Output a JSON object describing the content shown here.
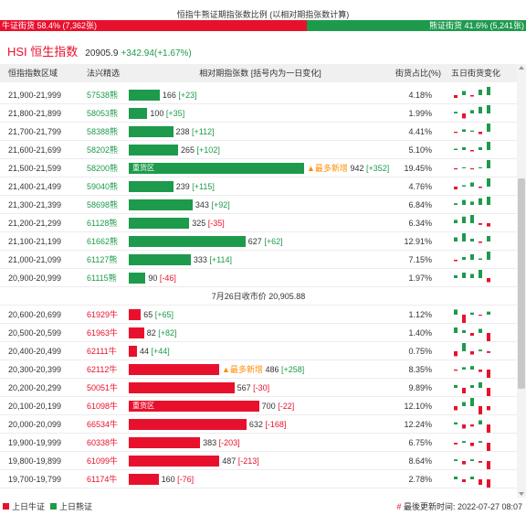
{
  "header": {
    "title": "恒指牛熊证期指张数比例 (以相对期指张数计算)",
    "bull_label": "牛证街货 58.4% (7,362张)",
    "bear_label": "熊证街货 41.6% (5,241张)",
    "bull_ratio": 0.584
  },
  "index": {
    "title": "HSI 恒生指数",
    "price": "20905.9",
    "change": "+342.94(+1.67%)"
  },
  "columns": {
    "range": "恒指指数区域",
    "code": "法兴精选",
    "bar": "相对期指张数 [括号内为一日变化]",
    "share": "街货占比(%)",
    "trend": "五日街货变化"
  },
  "bar_max": 942,
  "bear_rows": [
    {
      "range": "21,900-21,999",
      "code": "57538熊",
      "value": 166,
      "value_text": "166",
      "change": "[+23]",
      "dir": "up",
      "share": "4.18%",
      "trend": [
        -2,
        3,
        -1,
        4,
        6
      ]
    },
    {
      "range": "21,800-21,899",
      "code": "58053熊",
      "value": 100,
      "value_text": "100",
      "change": "[+35]",
      "dir": "up",
      "share": "1.99%",
      "trend": [
        1,
        -3,
        2,
        4,
        5
      ]
    },
    {
      "range": "21,700-21,799",
      "code": "58388熊",
      "value": 238,
      "value_text": "238",
      "change": "[+112]",
      "dir": "up",
      "share": "4.41%",
      "trend": [
        -1,
        2,
        1,
        -2,
        7
      ]
    },
    {
      "range": "21,600-21,699",
      "code": "58202熊",
      "value": 265,
      "value_text": "265",
      "change": "[+102]",
      "dir": "up",
      "share": "5.10%",
      "trend": [
        1,
        2,
        -1,
        2,
        6
      ]
    },
    {
      "range": "21,500-21,599",
      "code": "58200熊",
      "value": 942,
      "value_text": "942",
      "change": "[+352]",
      "dir": "up",
      "share": "19.45%",
      "label": "重货区",
      "newest": "▲最多新增",
      "trend": [
        -1,
        1,
        -1,
        1,
        8
      ]
    },
    {
      "range": "21,400-21,499",
      "code": "59040熊",
      "value": 239,
      "value_text": "239",
      "change": "[+115]",
      "dir": "up",
      "share": "4.76%",
      "trend": [
        -2,
        1,
        3,
        -1,
        6
      ]
    },
    {
      "range": "21,300-21,399",
      "code": "58698熊",
      "value": 343,
      "value_text": "343",
      "change": "[+92]",
      "dir": "up",
      "share": "6.84%",
      "trend": [
        1,
        3,
        2,
        4,
        5
      ]
    },
    {
      "range": "21,200-21,299",
      "code": "61128熊",
      "value": 325,
      "value_text": "325",
      "change": "[-35]",
      "dir": "down",
      "share": "6.34%",
      "trend": [
        2,
        4,
        5,
        -1,
        -2
      ]
    },
    {
      "range": "21,100-21,199",
      "code": "61662熊",
      "value": 627,
      "value_text": "627",
      "change": "[+62]",
      "dir": "up",
      "share": "12.91%",
      "trend": [
        3,
        6,
        2,
        -1,
        4
      ]
    },
    {
      "range": "21,000-21,099",
      "code": "61127熊",
      "value": 333,
      "value_text": "333",
      "change": "[+114]",
      "dir": "up",
      "share": "7.15%",
      "trend": [
        -1,
        2,
        4,
        1,
        6
      ]
    },
    {
      "range": "20,900-20,999",
      "code": "61115熊",
      "value": 90,
      "value_text": "90",
      "change": "[-46]",
      "dir": "down",
      "share": "1.97%",
      "trend": [
        2,
        4,
        3,
        6,
        -3
      ]
    }
  ],
  "close_note": "7月26日收市价 20,905.88",
  "bull_rows": [
    {
      "range": "20,600-20,699",
      "code": "61929牛",
      "value": 65,
      "value_text": "65",
      "change": "[+65]",
      "dir": "up",
      "share": "1.12%",
      "trend": [
        5,
        -8,
        2,
        -1,
        3
      ]
    },
    {
      "range": "20,500-20,599",
      "code": "61963牛",
      "value": 82,
      "value_text": "82",
      "change": "[+82]",
      "dir": "up",
      "share": "1.40%",
      "trend": [
        4,
        2,
        -2,
        3,
        -6
      ]
    },
    {
      "range": "20,400-20,499",
      "code": "62111牛",
      "value": 44,
      "value_text": "44",
      "change": "[+44]",
      "dir": "up",
      "share": "0.75%",
      "trend": [
        -3,
        5,
        -2,
        1,
        -1
      ]
    },
    {
      "range": "20,300-20,399",
      "code": "62112牛",
      "value": 486,
      "value_text": "486",
      "change": "[+258]",
      "dir": "up",
      "share": "8.35%",
      "newest": "▲最多新增",
      "trend": [
        -1,
        2,
        3,
        -2,
        -7
      ]
    },
    {
      "range": "20,200-20,299",
      "code": "50051牛",
      "value": 567,
      "value_text": "567",
      "change": "[-30]",
      "dir": "down",
      "share": "9.89%",
      "trend": [
        1,
        -2,
        1,
        2,
        -3
      ]
    },
    {
      "range": "20,100-20,199",
      "code": "61098牛",
      "value": 700,
      "value_text": "700",
      "change": "[-22]",
      "dir": "down",
      "share": "12.10%",
      "label": "重货区",
      "trend": [
        -1,
        1,
        2,
        -2,
        -1
      ]
    },
    {
      "range": "20,000-20,099",
      "code": "66534牛",
      "value": 632,
      "value_text": "632",
      "change": "[-168]",
      "dir": "down",
      "share": "12.24%",
      "trend": [
        1,
        -2,
        -1,
        2,
        -4
      ]
    },
    {
      "range": "19,900-19,999",
      "code": "60338牛",
      "value": 383,
      "value_text": "383",
      "change": "[-203]",
      "dir": "down",
      "share": "6.75%",
      "trend": [
        -1,
        1,
        -2,
        1,
        -5
      ]
    },
    {
      "range": "19,800-19,899",
      "code": "61099牛",
      "value": 487,
      "value_text": "487",
      "change": "[-213]",
      "dir": "down",
      "share": "8.64%",
      "trend": [
        1,
        -2,
        1,
        -1,
        -5
      ]
    },
    {
      "range": "19,700-19,799",
      "code": "61174牛",
      "value": 160,
      "value_text": "160",
      "change": "[-76]",
      "dir": "down",
      "share": "2.78%",
      "trend": [
        1,
        -1,
        1,
        -2,
        -3
      ]
    }
  ],
  "footer": {
    "legend_bull": "上日牛证",
    "legend_bear": "上日熊证",
    "update_prefix": "#",
    "update_text": "最後更新时间: 2022-07-27 08:07"
  },
  "colors": {
    "bull": "#e8112d",
    "bear": "#1e9a4c",
    "newest": "#ff8c00"
  }
}
